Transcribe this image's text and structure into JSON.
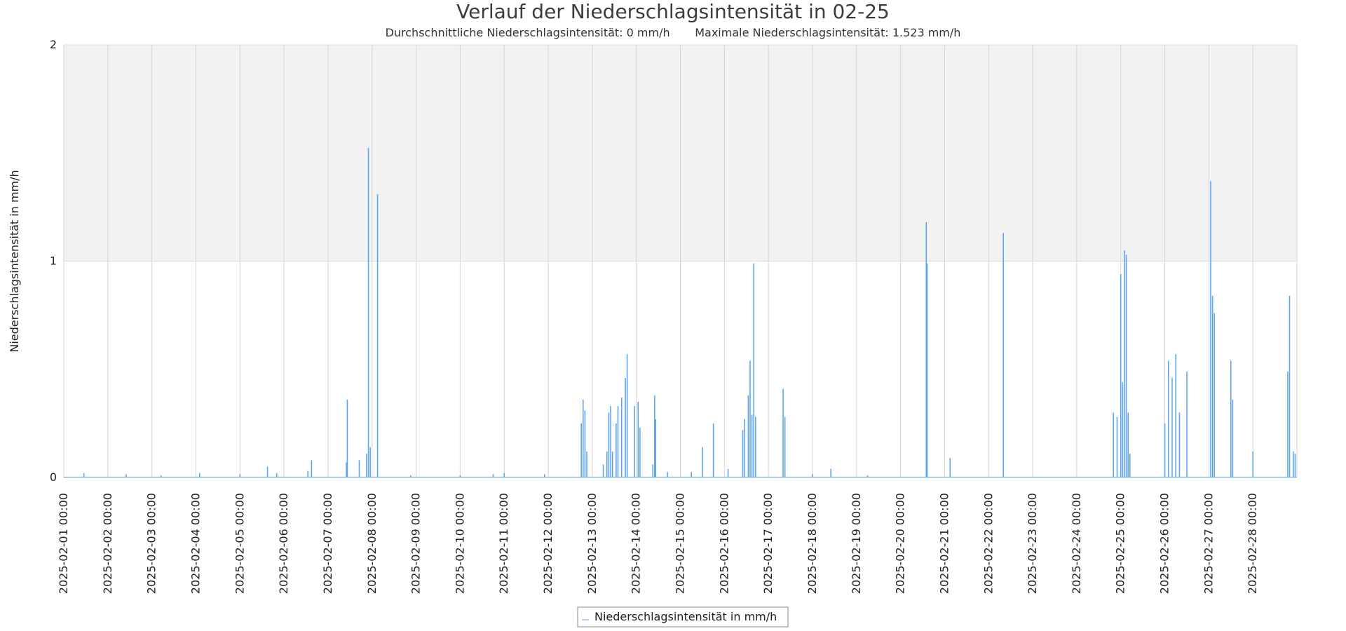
{
  "chart_data": {
    "type": "line",
    "title": "Verlauf der Niederschlagsintensität in 02-25",
    "subtitle": "Durchschnittliche Niederschlagsintensität: 0 mm/h       Maximale Niederschlagsintensität: 1.523 mm/h",
    "xlabel": "",
    "ylabel": "Niederschlagsintensität in mm/h",
    "xlim": [
      "2025-02-01 00:00",
      "2025-03-01 00:00"
    ],
    "ylim": [
      0,
      2
    ],
    "yticks": [
      "0",
      "1",
      "2"
    ],
    "xticks": [
      "2025-02-01 00:00",
      "2025-02-02 00:00",
      "2025-02-03 00:00",
      "2025-02-04 00:00",
      "2025-02-05 00:00",
      "2025-02-06 00:00",
      "2025-02-07 00:00",
      "2025-02-08 00:00",
      "2025-02-09 00:00",
      "2025-02-10 00:00",
      "2025-02-11 00:00",
      "2025-02-12 00:00",
      "2025-02-13 00:00",
      "2025-02-14 00:00",
      "2025-02-15 00:00",
      "2025-02-16 00:00",
      "2025-02-17 00:00",
      "2025-02-18 00:00",
      "2025-02-19 00:00",
      "2025-02-20 00:00",
      "2025-02-21 00:00",
      "2025-02-22 00:00",
      "2025-02-23 00:00",
      "2025-02-24 00:00",
      "2025-02-25 00:00",
      "2025-02-26 00:00",
      "2025-02-27 00:00",
      "2025-02-28 00:00"
    ],
    "grid": true,
    "shaded_band": {
      "from": 1,
      "to": 2,
      "color": "#f2f2f2"
    },
    "legend_position": "bottom-center",
    "series": [
      {
        "name": "Niederschlagsintensität in mm/h",
        "color": "#5fa5ee",
        "points": [
          [
            "2025-02-01 11:00",
            0.02
          ],
          [
            "2025-02-02 10:00",
            0.015
          ],
          [
            "2025-02-03 05:00",
            0.01
          ],
          [
            "2025-02-04 02:00",
            0.02
          ],
          [
            "2025-02-05 00:00",
            0.015
          ],
          [
            "2025-02-05 15:00",
            0.05
          ],
          [
            "2025-02-05 20:00",
            0.02
          ],
          [
            "2025-02-06 13:00",
            0.03
          ],
          [
            "2025-02-06 15:00",
            0.08
          ],
          [
            "2025-02-07 10:00",
            0.07
          ],
          [
            "2025-02-07 10:30",
            0.36
          ],
          [
            "2025-02-07 17:00",
            0.08
          ],
          [
            "2025-02-07 21:00",
            0.11
          ],
          [
            "2025-02-07 22:00",
            1.523
          ],
          [
            "2025-02-07 23:00",
            0.14
          ],
          [
            "2025-02-08 03:00",
            1.31
          ],
          [
            "2025-02-08 21:00",
            0.01
          ],
          [
            "2025-02-10 00:00",
            0.01
          ],
          [
            "2025-02-10 18:00",
            0.015
          ],
          [
            "2025-02-11 00:00",
            0.02
          ],
          [
            "2025-02-11 22:00",
            0.015
          ],
          [
            "2025-02-12 18:00",
            0.25
          ],
          [
            "2025-02-12 19:00",
            0.36
          ],
          [
            "2025-02-12 20:00",
            0.31
          ],
          [
            "2025-02-12 21:00",
            0.12
          ],
          [
            "2025-02-13 06:00",
            0.06
          ],
          [
            "2025-02-13 08:00",
            0.12
          ],
          [
            "2025-02-13 09:00",
            0.3
          ],
          [
            "2025-02-13 10:00",
            0.33
          ],
          [
            "2025-02-13 11:00",
            0.12
          ],
          [
            "2025-02-13 13:00",
            0.25
          ],
          [
            "2025-02-13 14:00",
            0.33
          ],
          [
            "2025-02-13 16:00",
            0.37
          ],
          [
            "2025-02-13 18:00",
            0.46
          ],
          [
            "2025-02-13 19:00",
            0.57
          ],
          [
            "2025-02-13 23:00",
            0.33
          ],
          [
            "2025-02-14 01:00",
            0.35
          ],
          [
            "2025-02-14 02:00",
            0.23
          ],
          [
            "2025-02-14 09:00",
            0.06
          ],
          [
            "2025-02-14 10:00",
            0.38
          ],
          [
            "2025-02-14 10:30",
            0.27
          ],
          [
            "2025-02-14 17:00",
            0.025
          ],
          [
            "2025-02-15 06:00",
            0.025
          ],
          [
            "2025-02-15 12:00",
            0.14
          ],
          [
            "2025-02-15 18:00",
            0.25
          ],
          [
            "2025-02-16 02:00",
            0.04
          ],
          [
            "2025-02-16 10:00",
            0.22
          ],
          [
            "2025-02-16 11:00",
            0.27
          ],
          [
            "2025-02-16 13:00",
            0.38
          ],
          [
            "2025-02-16 14:00",
            0.54
          ],
          [
            "2025-02-16 15:00",
            0.29
          ],
          [
            "2025-02-16 16:00",
            0.99
          ],
          [
            "2025-02-16 17:00",
            0.28
          ],
          [
            "2025-02-17 08:00",
            0.41
          ],
          [
            "2025-02-17 09:00",
            0.28
          ],
          [
            "2025-02-18 00:00",
            0.015
          ],
          [
            "2025-02-18 10:00",
            0.04
          ],
          [
            "2025-02-19 06:00",
            0.01
          ],
          [
            "2025-02-20 14:00",
            1.18
          ],
          [
            "2025-02-20 14:30",
            0.99
          ],
          [
            "2025-02-21 03:00",
            0.09
          ],
          [
            "2025-02-22 08:00",
            1.13
          ],
          [
            "2025-02-24 20:00",
            0.3
          ],
          [
            "2025-02-24 22:00",
            0.28
          ],
          [
            "2025-02-25 00:00",
            0.94
          ],
          [
            "2025-02-25 01:00",
            0.44
          ],
          [
            "2025-02-25 02:00",
            1.05
          ],
          [
            "2025-02-25 03:00",
            1.03
          ],
          [
            "2025-02-25 04:00",
            0.3
          ],
          [
            "2025-02-25 05:00",
            0.11
          ],
          [
            "2025-02-26 00:00",
            0.25
          ],
          [
            "2025-02-26 02:00",
            0.54
          ],
          [
            "2025-02-26 04:00",
            0.46
          ],
          [
            "2025-02-26 06:00",
            0.57
          ],
          [
            "2025-02-26 08:00",
            0.3
          ],
          [
            "2025-02-26 12:00",
            0.49
          ],
          [
            "2025-02-27 01:00",
            1.37
          ],
          [
            "2025-02-27 02:00",
            0.84
          ],
          [
            "2025-02-27 03:00",
            0.76
          ],
          [
            "2025-02-27 12:00",
            0.54
          ],
          [
            "2025-02-27 13:00",
            0.36
          ],
          [
            "2025-02-28 00:00",
            0.12
          ],
          [
            "2025-02-28 19:00",
            0.49
          ],
          [
            "2025-02-28 20:00",
            0.84
          ],
          [
            "2025-02-28 22:00",
            0.12
          ],
          [
            "2025-02-28 23:00",
            0.11
          ]
        ]
      }
    ]
  }
}
